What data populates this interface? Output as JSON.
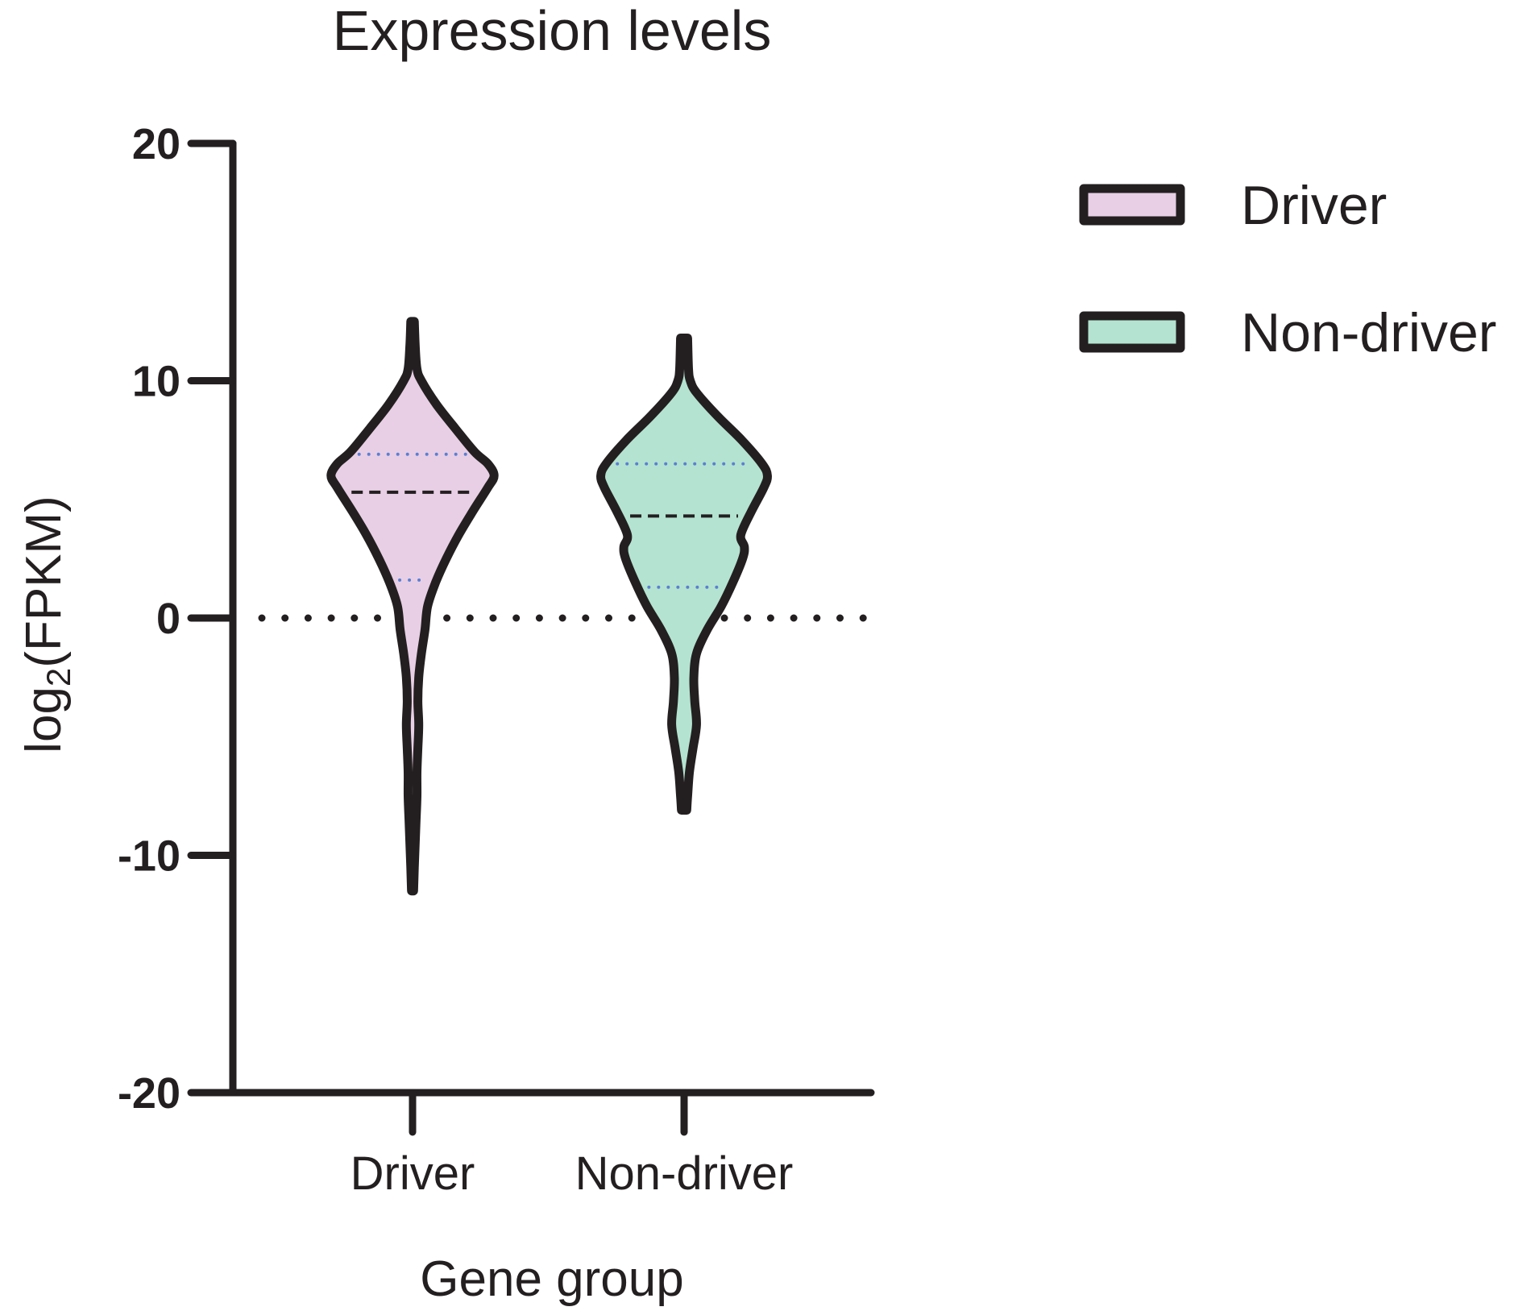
{
  "chart_data": {
    "type": "violin",
    "title": "Expression levels",
    "xlabel": "Gene group",
    "ylabel_main": "log",
    "ylabel_sub": "2",
    "ylabel_rest": "(FPKM)",
    "ylim": [
      -20,
      20
    ],
    "yticks": [
      20,
      10,
      0,
      -10,
      -20
    ],
    "ytick_labels": [
      "20",
      "10",
      "0",
      "-10",
      "-20"
    ],
    "categories": [
      "Driver",
      "Non-driver"
    ],
    "reference_line": {
      "y": 0,
      "style": "dotted"
    },
    "legend": {
      "placement": "top-right",
      "entries": [
        "Driver",
        "Non-driver"
      ]
    },
    "series": [
      {
        "name": "Driver",
        "color": "#e8cfe5",
        "median": 5.3,
        "q1": 1.6,
        "q3": 6.9,
        "max": 12.5,
        "min": -11.5,
        "density": [
          [
            -11.5,
            0.012
          ],
          [
            -10.5,
            0.02
          ],
          [
            -9.5,
            0.03
          ],
          [
            -8.5,
            0.04
          ],
          [
            -7.5,
            0.05
          ],
          [
            -6.5,
            0.05
          ],
          [
            -5.5,
            0.06
          ],
          [
            -4.5,
            0.07
          ],
          [
            -3.5,
            0.06
          ],
          [
            -2.5,
            0.07
          ],
          [
            -1.5,
            0.1
          ],
          [
            -0.5,
            0.14
          ],
          [
            0.5,
            0.17
          ],
          [
            1.5,
            0.26
          ],
          [
            2.5,
            0.38
          ],
          [
            3.5,
            0.52
          ],
          [
            4.5,
            0.68
          ],
          [
            5.5,
            0.85
          ],
          [
            6.0,
            0.92
          ],
          [
            6.5,
            0.85
          ],
          [
            7.0,
            0.7
          ],
          [
            8.0,
            0.48
          ],
          [
            9.0,
            0.27
          ],
          [
            10.0,
            0.1
          ],
          [
            10.5,
            0.05
          ],
          [
            11.5,
            0.03
          ],
          [
            12.5,
            0.02
          ]
        ]
      },
      {
        "name": "Non-driver",
        "color": "#b4e3d1",
        "median": 4.3,
        "q1": 1.3,
        "q3": 6.5,
        "max": 11.8,
        "min": -8.1,
        "density": [
          [
            -8.1,
            0.03
          ],
          [
            -7.5,
            0.04
          ],
          [
            -6.5,
            0.06
          ],
          [
            -5.5,
            0.1
          ],
          [
            -4.5,
            0.14
          ],
          [
            -3.5,
            0.12
          ],
          [
            -2.5,
            0.11
          ],
          [
            -1.5,
            0.14
          ],
          [
            -0.5,
            0.26
          ],
          [
            0.5,
            0.42
          ],
          [
            1.5,
            0.55
          ],
          [
            2.5,
            0.66
          ],
          [
            3.0,
            0.68
          ],
          [
            3.5,
            0.64
          ],
          [
            4.5,
            0.76
          ],
          [
            5.5,
            0.9
          ],
          [
            6.0,
            0.94
          ],
          [
            6.5,
            0.88
          ],
          [
            7.5,
            0.65
          ],
          [
            8.5,
            0.38
          ],
          [
            9.5,
            0.14
          ],
          [
            10.0,
            0.07
          ],
          [
            10.5,
            0.05
          ],
          [
            11.8,
            0.04
          ]
        ]
      }
    ]
  }
}
